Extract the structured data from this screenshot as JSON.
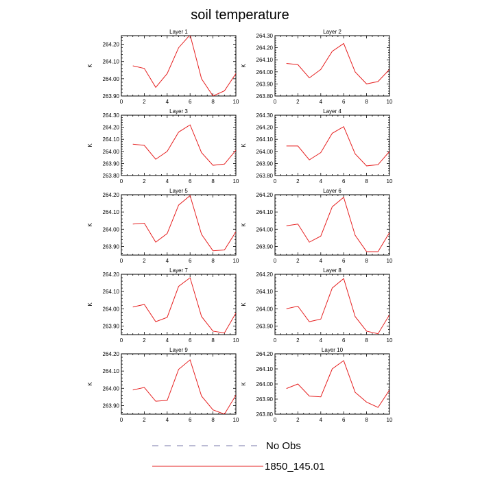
{
  "chart_data": {
    "title": "soil temperature",
    "type": "line",
    "ylabel": "K",
    "x": [
      1,
      2,
      3,
      4,
      5,
      6,
      7,
      8,
      9,
      10
    ],
    "xlim": [
      0,
      10
    ],
    "xticks": [
      0,
      2,
      4,
      6,
      8,
      10
    ],
    "legend": [
      {
        "label": "No Obs",
        "style": "dashed",
        "color": "#7777aa"
      },
      {
        "label": "1850_145.01",
        "style": "solid",
        "color": "#e62020"
      }
    ],
    "series_color": "#e62020",
    "panels": [
      {
        "title": "Layer 1",
        "ylim": [
          263.9,
          264.25
        ],
        "yticks": [
          "263.90",
          "264.00",
          "264.10",
          "264.20"
        ],
        "values": [
          264.075,
          264.06,
          263.95,
          264.03,
          264.18,
          264.255,
          264.0,
          263.9,
          263.93,
          264.03
        ]
      },
      {
        "title": "Layer 2",
        "ylim": [
          263.8,
          264.3
        ],
        "yticks": [
          "263.80",
          "263.90",
          "264.00",
          "264.10",
          "264.20",
          "264.30"
        ],
        "values": [
          264.07,
          264.06,
          263.95,
          264.02,
          264.17,
          264.235,
          264.0,
          263.9,
          263.92,
          264.02
        ]
      },
      {
        "title": "Layer 3",
        "ylim": [
          263.8,
          264.3
        ],
        "yticks": [
          "263.80",
          "263.90",
          "264.00",
          "264.10",
          "264.20",
          "264.30"
        ],
        "values": [
          264.06,
          264.05,
          263.935,
          264.0,
          264.16,
          264.22,
          263.99,
          263.885,
          263.895,
          264.01
        ]
      },
      {
        "title": "Layer 4",
        "ylim": [
          263.8,
          264.3
        ],
        "yticks": [
          "263.80",
          "263.90",
          "264.00",
          "264.10",
          "264.20",
          "264.30"
        ],
        "values": [
          264.045,
          264.045,
          263.93,
          263.99,
          264.15,
          264.205,
          263.98,
          263.88,
          263.89,
          264.0
        ]
      },
      {
        "title": "Layer 5",
        "ylim": [
          263.85,
          264.2
        ],
        "yticks": [
          "263.90",
          "264.00",
          "264.10",
          "264.20"
        ],
        "values": [
          264.03,
          264.035,
          263.925,
          263.975,
          264.14,
          264.195,
          263.97,
          263.875,
          263.88,
          263.985
        ]
      },
      {
        "title": "Layer 6",
        "ylim": [
          263.85,
          264.2
        ],
        "yticks": [
          "263.90",
          "264.00",
          "264.10",
          "264.20"
        ],
        "values": [
          264.02,
          264.03,
          263.925,
          263.96,
          264.13,
          264.185,
          263.965,
          263.87,
          263.87,
          263.98
        ]
      },
      {
        "title": "Layer 7",
        "ylim": [
          263.85,
          264.2
        ],
        "yticks": [
          "263.90",
          "264.00",
          "264.10",
          "264.20"
        ],
        "values": [
          264.01,
          264.025,
          263.925,
          263.95,
          264.13,
          264.18,
          263.955,
          263.87,
          263.86,
          263.975
        ]
      },
      {
        "title": "Layer 8",
        "ylim": [
          263.85,
          264.2
        ],
        "yticks": [
          "263.90",
          "264.00",
          "264.10",
          "264.20"
        ],
        "values": [
          264.0,
          264.015,
          263.925,
          263.94,
          264.12,
          264.175,
          263.955,
          263.87,
          263.855,
          263.965
        ]
      },
      {
        "title": "Layer 9",
        "ylim": [
          263.85,
          264.2
        ],
        "yticks": [
          "263.90",
          "264.00",
          "264.10",
          "264.20"
        ],
        "values": [
          263.99,
          264.005,
          263.925,
          263.93,
          264.11,
          264.165,
          263.955,
          263.875,
          263.85,
          263.96
        ]
      },
      {
        "title": "Layer 10",
        "ylim": [
          263.8,
          264.2
        ],
        "yticks": [
          "263.80",
          "263.90",
          "264.00",
          "264.10",
          "264.20"
        ],
        "values": [
          263.97,
          264.0,
          263.92,
          263.915,
          264.1,
          264.155,
          263.945,
          263.88,
          263.845,
          263.96
        ]
      }
    ]
  }
}
